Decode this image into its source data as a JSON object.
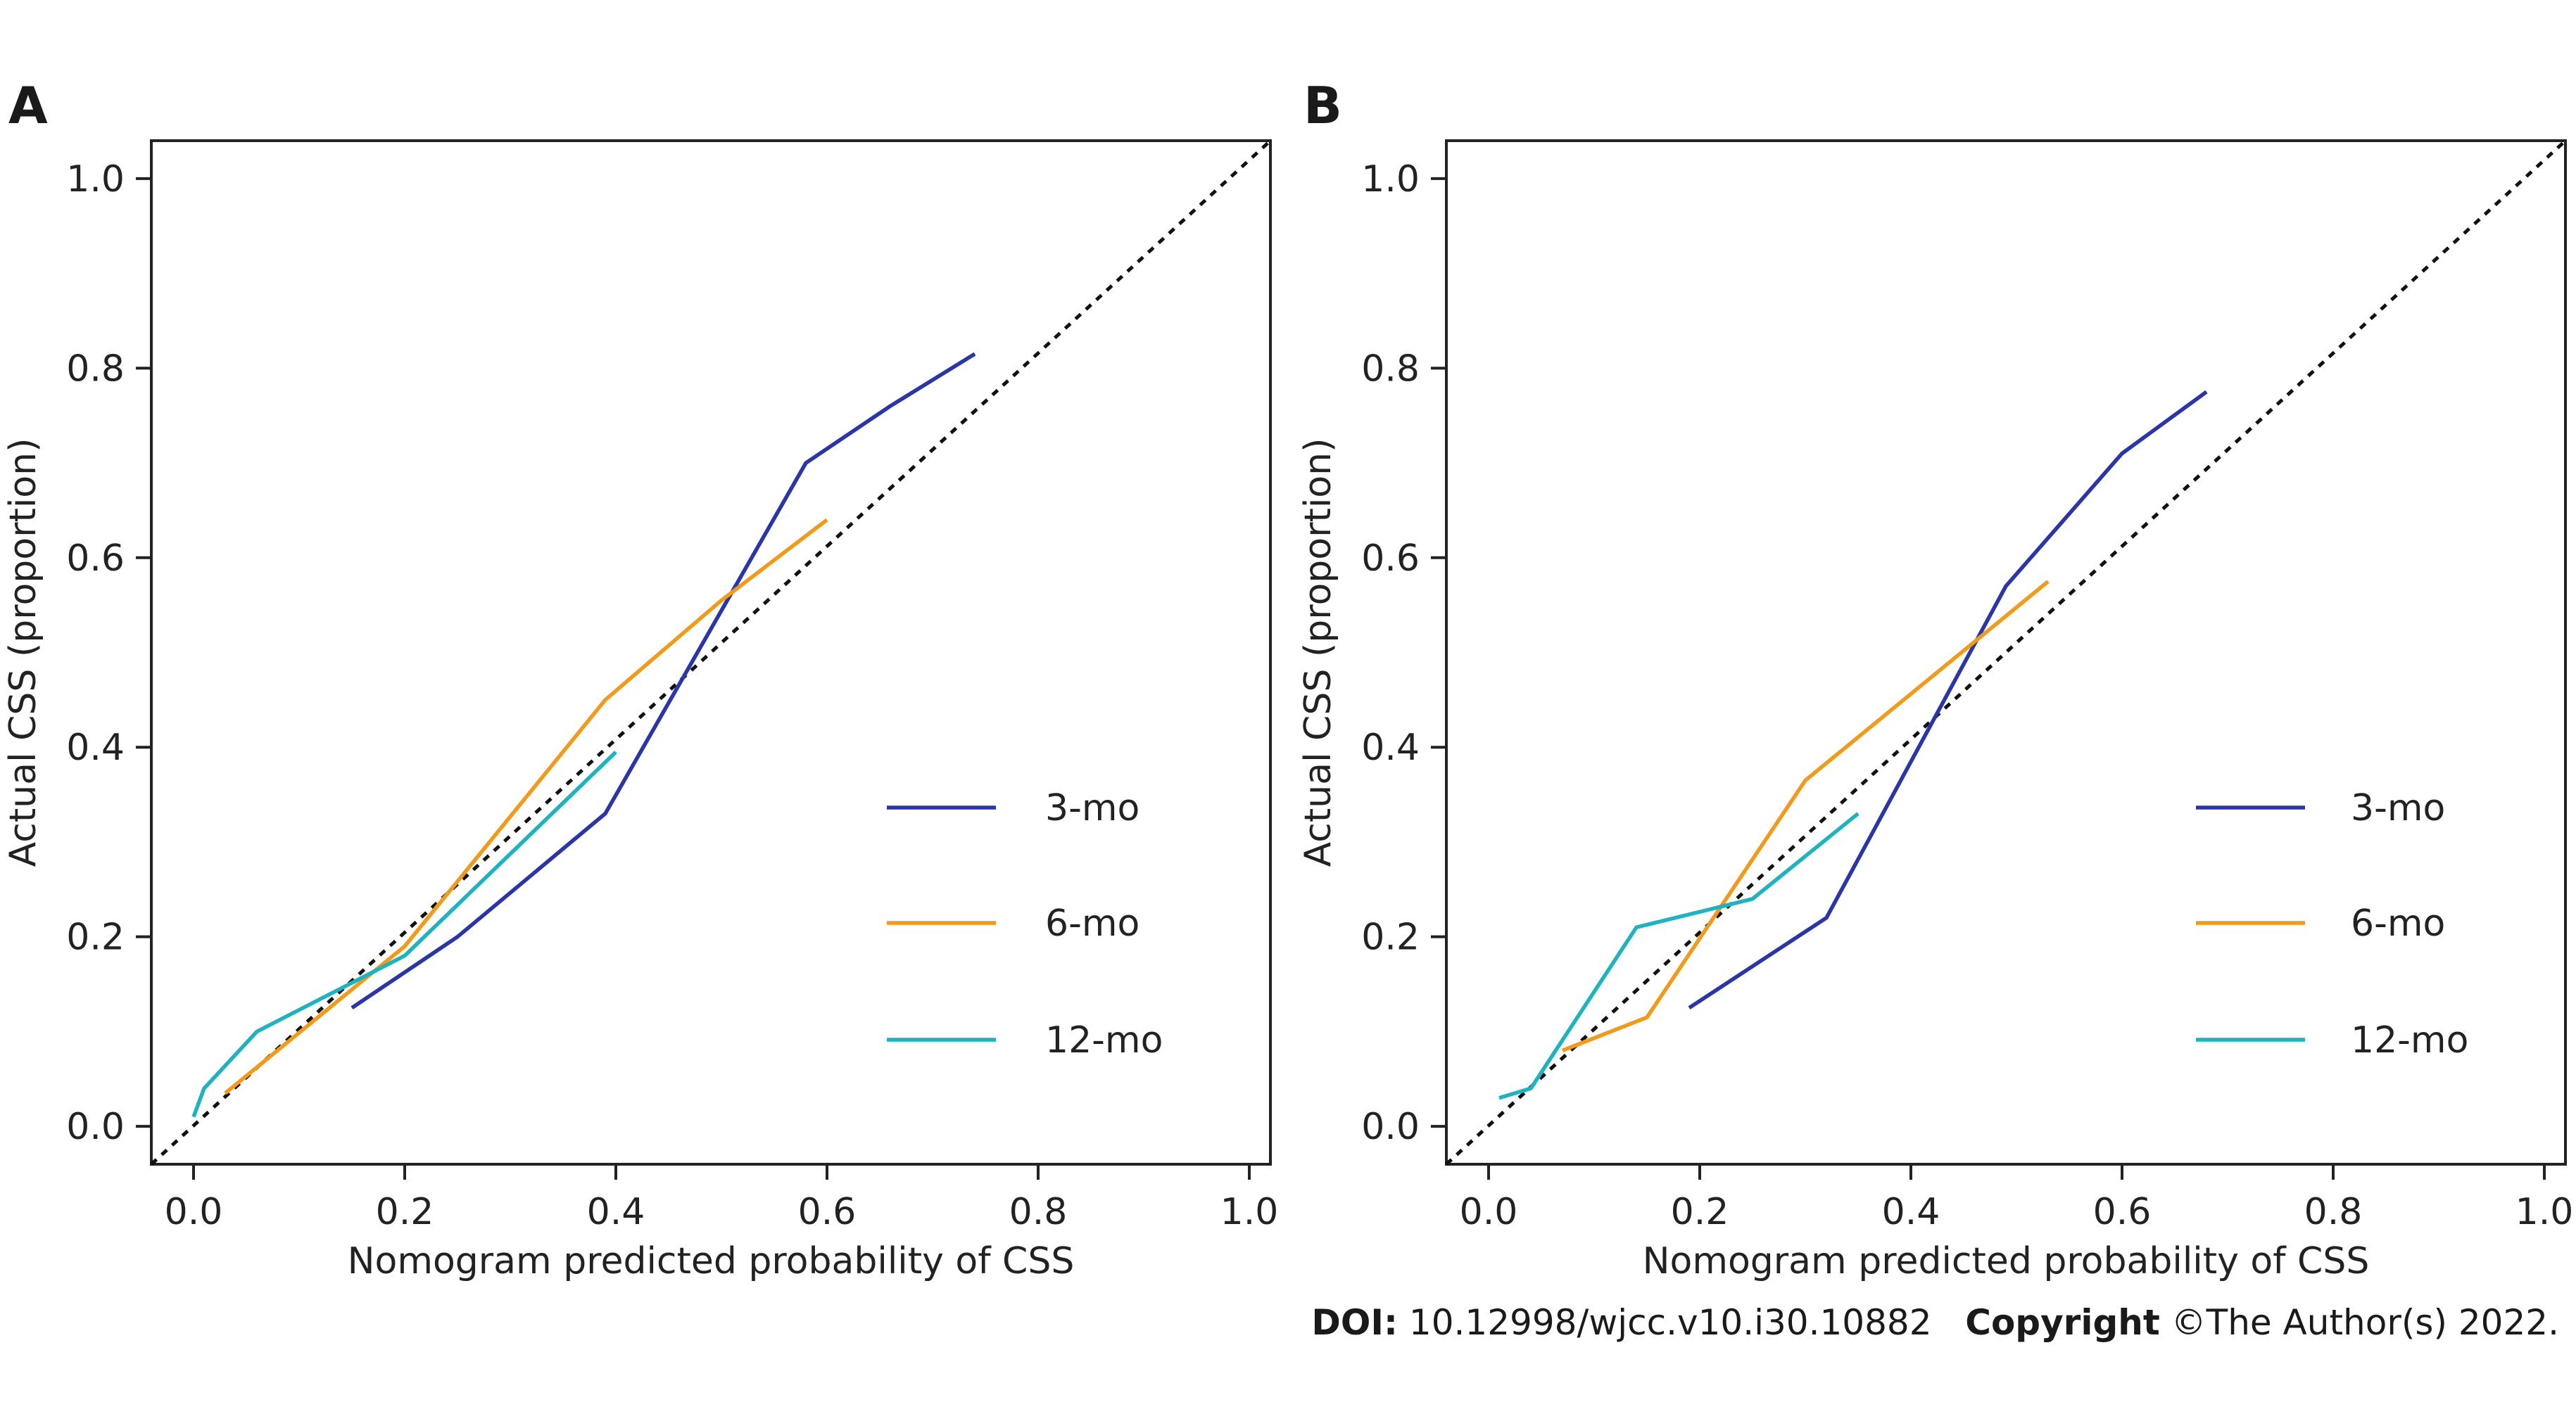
{
  "colors": {
    "series": [
      "#2a36a8",
      "#f29a1a",
      "#1fb3c2"
    ],
    "reference": "#111111",
    "axis": "#222222"
  },
  "chart_data": [
    {
      "type": "line",
      "panel_label": "A",
      "xlabel": "Nomogram predicted probability of CSS",
      "ylabel": "Actual CSS (proportion)",
      "xlim": [
        -0.04,
        1.02
      ],
      "ylim": [
        -0.04,
        1.04
      ],
      "x_ticks": [
        "0.0",
        "0.2",
        "0.4",
        "0.6",
        "0.8",
        "1.0"
      ],
      "y_ticks": [
        "0.0",
        "0.2",
        "0.4",
        "0.6",
        "0.8",
        "1.0"
      ],
      "grid": false,
      "legend_position": "right, lower-middle",
      "reference_line": "diagonal dashed y = x",
      "series": [
        {
          "name": "3-mo",
          "color": "#2a36a8",
          "points": [
            [
              0.15,
              0.125
            ],
            [
              0.25,
              0.2
            ],
            [
              0.39,
              0.33
            ],
            [
              0.58,
              0.7
            ],
            [
              0.66,
              0.76
            ],
            [
              0.74,
              0.815
            ]
          ]
        },
        {
          "name": "6-mo",
          "color": "#f29a1a",
          "points": [
            [
              0.03,
              0.035
            ],
            [
              0.2,
              0.19
            ],
            [
              0.39,
              0.45
            ],
            [
              0.5,
              0.555
            ],
            [
              0.6,
              0.64
            ]
          ]
        },
        {
          "name": "12-mo",
          "color": "#1fb3c2",
          "points": [
            [
              0.0,
              0.01
            ],
            [
              0.01,
              0.04
            ],
            [
              0.06,
              0.1
            ],
            [
              0.2,
              0.18
            ],
            [
              0.4,
              0.395
            ]
          ]
        }
      ]
    },
    {
      "type": "line",
      "panel_label": "B",
      "xlabel": "Nomogram predicted probability of CSS",
      "ylabel": "Actual CSS (proportion)",
      "xlim": [
        -0.04,
        1.02
      ],
      "ylim": [
        -0.04,
        1.04
      ],
      "x_ticks": [
        "0.0",
        "0.2",
        "0.4",
        "0.6",
        "0.8",
        "1.0"
      ],
      "y_ticks": [
        "0.0",
        "0.2",
        "0.4",
        "0.6",
        "0.8",
        "1.0"
      ],
      "grid": false,
      "legend_position": "right, lower-middle",
      "reference_line": "diagonal dashed y = x",
      "series": [
        {
          "name": "3-mo",
          "color": "#2a36a8",
          "points": [
            [
              0.19,
              0.125
            ],
            [
              0.32,
              0.22
            ],
            [
              0.49,
              0.57
            ],
            [
              0.6,
              0.71
            ],
            [
              0.68,
              0.775
            ]
          ]
        },
        {
          "name": "6-mo",
          "color": "#f29a1a",
          "points": [
            [
              0.07,
              0.08
            ],
            [
              0.15,
              0.115
            ],
            [
              0.3,
              0.365
            ],
            [
              0.53,
              0.575
            ]
          ]
        },
        {
          "name": "12-mo",
          "color": "#1fb3c2",
          "points": [
            [
              0.01,
              0.03
            ],
            [
              0.04,
              0.04
            ],
            [
              0.14,
              0.21
            ],
            [
              0.25,
              0.24
            ],
            [
              0.35,
              0.33
            ]
          ]
        }
      ]
    }
  ],
  "citation": {
    "doi_label": "DOI:",
    "doi_value": "10.12998/wjcc.v10.i30.10882",
    "copyright_label": "Copyright",
    "copyright_value": "©The Author(s) 2022."
  }
}
